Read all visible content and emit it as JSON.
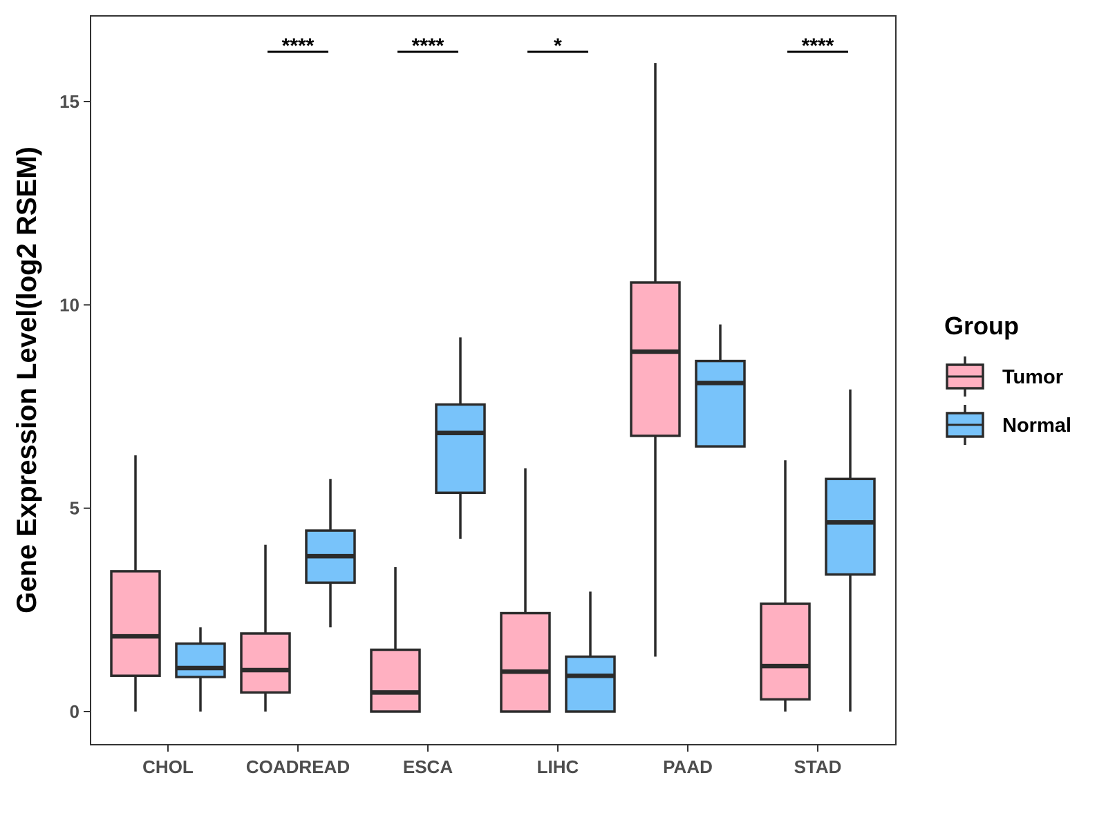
{
  "chart_data": {
    "type": "boxplot",
    "title": "",
    "xlabel": "",
    "ylabel": "Gene Expression Level(log2 RSEM)",
    "ylim": [
      -0.8,
      17
    ],
    "yticks": [
      0,
      5,
      10,
      15
    ],
    "grid": false,
    "legend_position": "right",
    "legend": {
      "title": "Group",
      "entries": [
        {
          "name": "Tumor",
          "color": "#FFB0C1"
        },
        {
          "name": "Normal",
          "color": "#78C3FA"
        }
      ]
    },
    "categories": [
      "CHOL",
      "COADREAD",
      "ESCA",
      "LIHC",
      "PAAD",
      "STAD"
    ],
    "series": [
      {
        "name": "Tumor",
        "color": "#FFB0C1",
        "boxes": [
          {
            "min": 0,
            "q1": 0.88,
            "median": 1.85,
            "q3": 3.45,
            "max": 6.3
          },
          {
            "min": 0,
            "q1": 0.47,
            "median": 1.02,
            "q3": 1.92,
            "max": 4.1
          },
          {
            "min": 0,
            "q1": 0,
            "median": 0.47,
            "q3": 1.52,
            "max": 3.55
          },
          {
            "min": 0,
            "q1": 0,
            "median": 0.98,
            "q3": 2.42,
            "max": 5.98
          },
          {
            "min": 1.35,
            "q1": 6.78,
            "median": 8.85,
            "q3": 10.55,
            "max": 15.95
          },
          {
            "min": 0,
            "q1": 0.3,
            "median": 1.12,
            "q3": 2.65,
            "max": 6.18
          }
        ]
      },
      {
        "name": "Normal",
        "color": "#78C3FA",
        "boxes": [
          {
            "min": 0,
            "q1": 0.85,
            "median": 1.07,
            "q3": 1.67,
            "max": 2.07
          },
          {
            "min": 2.07,
            "q1": 3.17,
            "median": 3.82,
            "q3": 4.45,
            "max": 5.72
          },
          {
            "min": 4.25,
            "q1": 5.38,
            "median": 6.85,
            "q3": 7.55,
            "max": 9.2
          },
          {
            "min": 0,
            "q1": 0,
            "median": 0.88,
            "q3": 1.35,
            "max": 2.95
          },
          {
            "min": 6.52,
            "q1": 6.52,
            "median": 8.08,
            "q3": 8.62,
            "max": 9.52
          },
          {
            "min": 0,
            "q1": 3.37,
            "median": 4.65,
            "q3": 5.72,
            "max": 7.92
          }
        ]
      }
    ],
    "annotations": [
      {
        "category": "COADREAD",
        "label": "****"
      },
      {
        "category": "ESCA",
        "label": "****"
      },
      {
        "category": "LIHC",
        "label": "*"
      },
      {
        "category": "STAD",
        "label": "****"
      }
    ]
  }
}
